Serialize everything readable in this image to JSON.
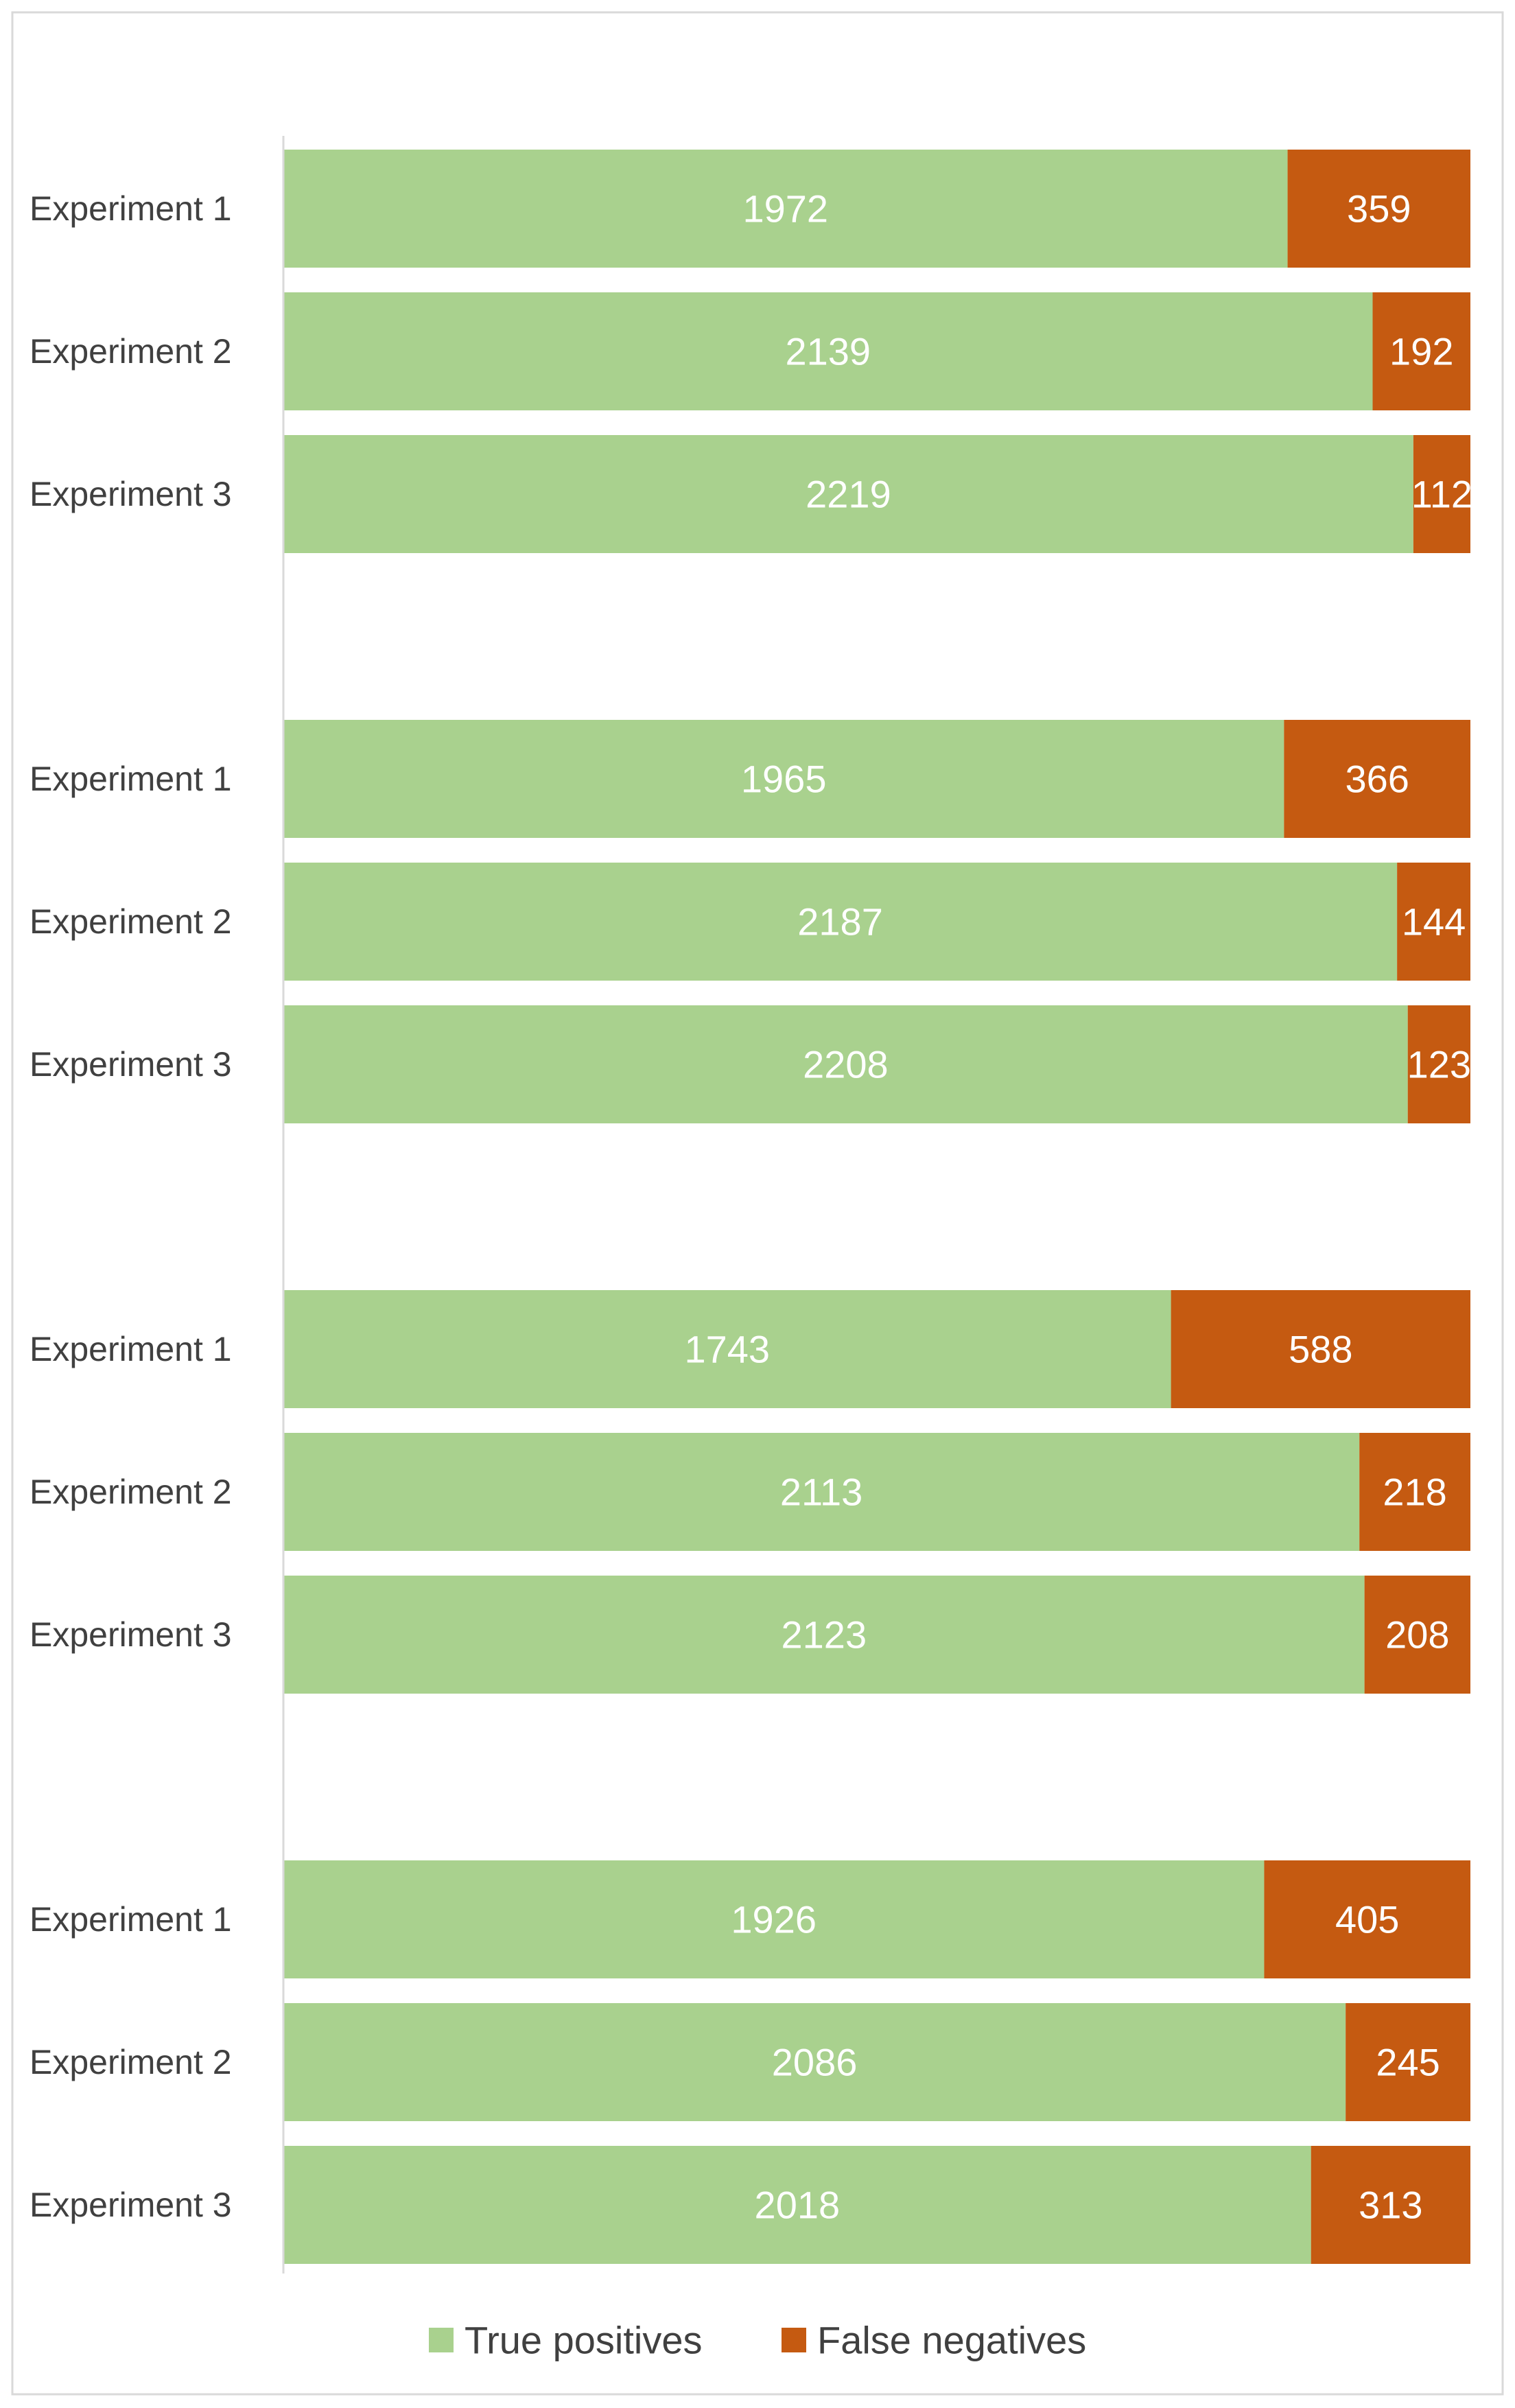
{
  "chart_data": {
    "type": "stacked-bar-horizontal",
    "title": "",
    "xlabel": "",
    "ylabel": "",
    "total": 2331,
    "groups": [
      {
        "categories": [
          "Experiment 1",
          "Experiment 2",
          "Experiment 3"
        ],
        "series": [
          {
            "name": "True positives",
            "values": [
              1972,
              2139,
              2219
            ]
          },
          {
            "name": "False negatives",
            "values": [
              359,
              192,
              112
            ]
          }
        ]
      },
      {
        "categories": [
          "Experiment 1",
          "Experiment 2",
          "Experiment 3"
        ],
        "series": [
          {
            "name": "True positives",
            "values": [
              1965,
              2187,
              2208
            ]
          },
          {
            "name": "False negatives",
            "values": [
              366,
              144,
              123
            ]
          }
        ]
      },
      {
        "categories": [
          "Experiment 1",
          "Experiment 2",
          "Experiment 3"
        ],
        "series": [
          {
            "name": "True positives",
            "values": [
              1743,
              2113,
              2123
            ]
          },
          {
            "name": "False negatives",
            "values": [
              588,
              218,
              208
            ]
          }
        ]
      },
      {
        "categories": [
          "Experiment 1",
          "Experiment 2",
          "Experiment 3"
        ],
        "series": [
          {
            "name": "True positives",
            "values": [
              1926,
              2086,
              2018
            ]
          },
          {
            "name": "False negatives",
            "values": [
              405,
              245,
              313
            ]
          }
        ]
      }
    ],
    "legend": {
      "position": "bottom",
      "entries": [
        "True positives",
        "False negatives"
      ]
    },
    "grid": false
  },
  "colors": {
    "true_positives": "#a9d18e",
    "false_negatives": "#c55a11",
    "axis": "#d9d9d9",
    "frame": "#d9d9d9"
  }
}
